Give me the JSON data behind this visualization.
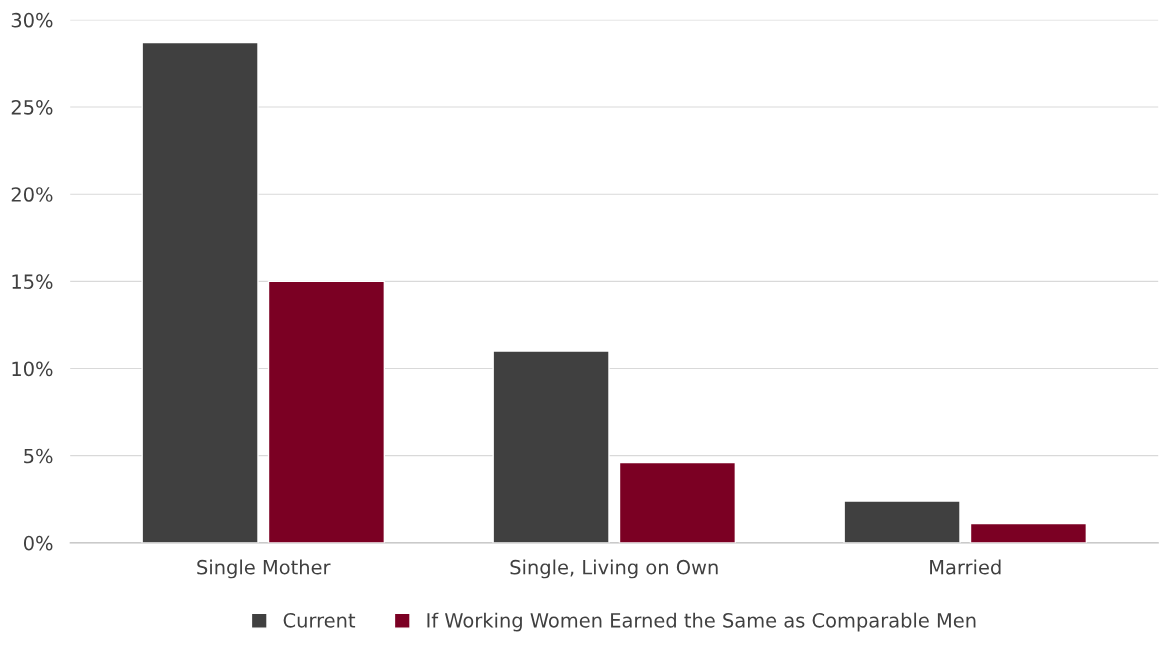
{
  "chart_data": {
    "type": "bar",
    "categories": [
      "Single Mother",
      "Single, Living on Own",
      "Married"
    ],
    "series": [
      {
        "name": "Current",
        "color": "#404040",
        "values": [
          28.7,
          11.0,
          2.4
        ]
      },
      {
        "name": "If Working Women Earned the Same as Comparable Men",
        "color": "#7b0023",
        "values": [
          15.0,
          4.6,
          1.1
        ]
      }
    ],
    "ylim": [
      0,
      30
    ],
    "yticks": [
      {
        "value": 0,
        "label": "0%"
      },
      {
        "value": 5,
        "label": "5%"
      },
      {
        "value": 10,
        "label": "10%"
      },
      {
        "value": 15,
        "label": "15%"
      },
      {
        "value": 20,
        "label": "20%"
      },
      {
        "value": 25,
        "label": "25%"
      },
      {
        "value": 30,
        "label": "30%"
      }
    ],
    "grid": "y",
    "legend": "bottom"
  }
}
